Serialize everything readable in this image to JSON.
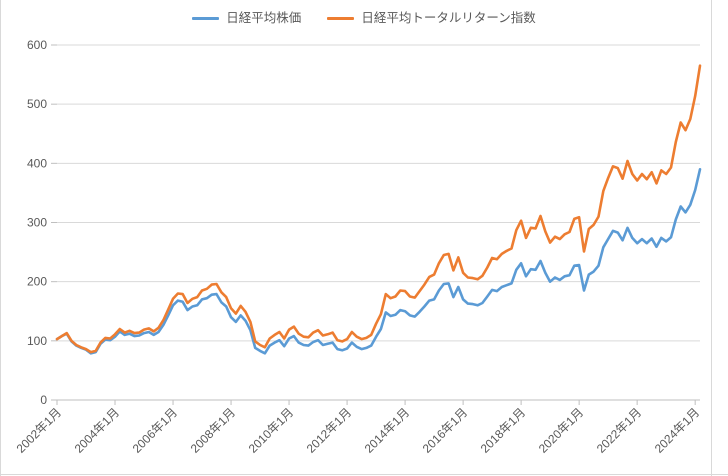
{
  "chart_data": {
    "type": "line",
    "title": "",
    "grid": "horizontal",
    "legend_position": "top",
    "x_axis": {
      "start_month": "2002-01",
      "step_months_between_points": 2,
      "tick_step_months": 24,
      "tick_labels": [
        "2002年1月",
        "2004年1月",
        "2006年1月",
        "2008年1月",
        "2010年1月",
        "2012年1月",
        "2014年1月",
        "2016年1月",
        "2018年1月",
        "2020年1月",
        "2022年1月",
        "2024年1月"
      ]
    },
    "y_axis": {
      "min": 0,
      "max": 600,
      "tick_interval": 100,
      "tick_labels": [
        "0",
        "100",
        "200",
        "300",
        "400",
        "500",
        "600"
      ]
    },
    "series": [
      {
        "name": "日経平均株価",
        "color": "#5B9BD5",
        "values": [
          103,
          108,
          112,
          99,
          92,
          88,
          85,
          79,
          81,
          95,
          102,
          101,
          107,
          116,
          110,
          112,
          108,
          109,
          113,
          115,
          110,
          115,
          127,
          143,
          160,
          168,
          166,
          152,
          158,
          160,
          170,
          172,
          178,
          179,
          165,
          158,
          140,
          132,
          143,
          134,
          118,
          88,
          83,
          79,
          92,
          97,
          101,
          91,
          104,
          108,
          97,
          93,
          92,
          98,
          101,
          93,
          95,
          97,
          86,
          84,
          87,
          97,
          90,
          86,
          88,
          92,
          107,
          120,
          148,
          142,
          144,
          152,
          150,
          143,
          141,
          149,
          158,
          168,
          170,
          185,
          196,
          197,
          174,
          191,
          170,
          163,
          162,
          160,
          164,
          175,
          186,
          184,
          191,
          194,
          197,
          220,
          231,
          209,
          221,
          220,
          235,
          215,
          200,
          207,
          203,
          209,
          211,
          227,
          228,
          185,
          212,
          217,
          227,
          258,
          272,
          286,
          283,
          270,
          291,
          274,
          265,
          272,
          265,
          273,
          259,
          274,
          268,
          275,
          305,
          327,
          317,
          330,
          355,
          390
        ]
      },
      {
        "name": "日経平均トータルリターン指数",
        "color": "#ED7D31",
        "values": [
          103,
          108,
          113,
          100,
          93,
          89,
          86,
          81,
          83,
          97,
          105,
          104,
          111,
          120,
          114,
          117,
          113,
          114,
          119,
          121,
          116,
          122,
          135,
          153,
          171,
          180,
          179,
          164,
          171,
          174,
          185,
          188,
          195,
          196,
          182,
          174,
          155,
          146,
          159,
          149,
          132,
          99,
          93,
          89,
          104,
          110,
          115,
          104,
          119,
          124,
          112,
          107,
          106,
          114,
          118,
          109,
          111,
          114,
          101,
          99,
          103,
          115,
          107,
          103,
          105,
          110,
          129,
          145,
          179,
          172,
          175,
          185,
          184,
          175,
          173,
          184,
          195,
          208,
          212,
          231,
          245,
          247,
          219,
          241,
          215,
          207,
          206,
          204,
          210,
          224,
          240,
          238,
          247,
          252,
          256,
          287,
          303,
          274,
          291,
          290,
          311,
          285,
          266,
          276,
          272,
          280,
          284,
          306,
          309,
          251,
          289,
          296,
          310,
          353,
          375,
          395,
          392,
          374,
          404,
          382,
          371,
          382,
          373,
          385,
          366,
          388,
          382,
          393,
          436,
          469,
          456,
          475,
          514,
          565
        ]
      }
    ],
    "colors": {
      "gridline": "#d9d9d9",
      "axis_line": "#bfbfbf",
      "tick_label": "#595959",
      "legend_text": "#595959",
      "background": "#ffffff"
    }
  }
}
